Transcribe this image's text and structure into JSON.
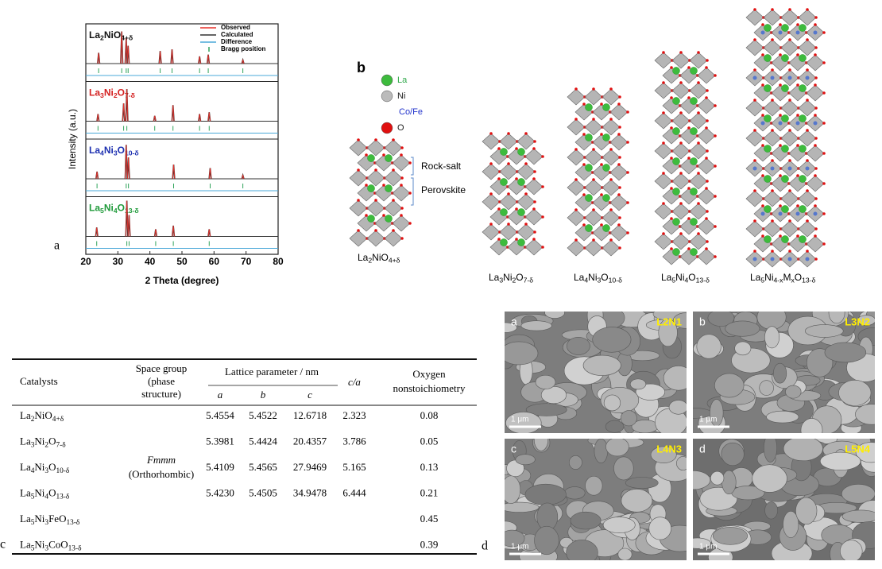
{
  "panel_a": {
    "label": "a",
    "y_axis_label": "Intensity (a.u.)",
    "x_axis_label": "2 Theta (degree)",
    "xlim": [
      20,
      80
    ],
    "xticks": [
      20,
      30,
      40,
      50,
      60,
      70,
      80
    ],
    "legend": [
      {
        "name": "Observed",
        "color": "#e8302a"
      },
      {
        "name": "Calculated",
        "color": "#333333"
      },
      {
        "name": "Difference",
        "color": "#4aa8d8"
      },
      {
        "name": "Bragg position",
        "color": "#2fa35a"
      }
    ],
    "samples": [
      {
        "formula": [
          "La",
          "2",
          "NiO",
          "4+δ"
        ],
        "color": "#111111",
        "peak_positions": [
          24,
          31.2,
          32.6,
          33.2,
          43.2,
          46.9,
          55.5,
          58.2,
          69
        ],
        "peak_heights": [
          0.3,
          0.9,
          0.7,
          0.5,
          0.35,
          0.4,
          0.2,
          0.25,
          0.1
        ]
      },
      {
        "formula": [
          "La",
          "3",
          "Ni",
          "2",
          "O",
          "7-δ"
        ],
        "color": "#d42020",
        "peak_positions": [
          23.8,
          31.8,
          32.8,
          41.5,
          47.2,
          55.5,
          58.5
        ],
        "peak_heights": [
          0.2,
          0.5,
          0.9,
          0.15,
          0.45,
          0.2,
          0.25
        ]
      },
      {
        "formula": [
          "La",
          "4",
          "Ni",
          "3",
          "O",
          "10-δ"
        ],
        "color": "#1c2fb0",
        "peak_positions": [
          23.5,
          32.6,
          33.3,
          47.4,
          58.8,
          69
        ],
        "peak_heights": [
          0.2,
          0.95,
          0.6,
          0.4,
          0.3,
          0.1
        ]
      },
      {
        "formula": [
          "La",
          "5",
          "Ni",
          "4",
          "O",
          "13-δ"
        ],
        "color": "#1f9a3a",
        "peak_positions": [
          23.4,
          32.8,
          33.5,
          41.8,
          47.3,
          58.5
        ],
        "peak_heights": [
          0.25,
          1.0,
          0.6,
          0.2,
          0.3,
          0.2
        ]
      }
    ]
  },
  "panel_b": {
    "label": "b",
    "legend": [
      {
        "name": "La",
        "ball_color": "#3dbb3d",
        "text_color": "#2fa84a"
      },
      {
        "name": "Ni",
        "ball_color": "#bbbbbb",
        "text_color": "#222222"
      },
      {
        "name": "Co/Fe",
        "text_color": "#2233cc"
      },
      {
        "name": "O",
        "ball_color": "#e01010",
        "text_color": "#222222"
      }
    ],
    "layer_labels": [
      "Rock-salt",
      "Perovskite"
    ],
    "structures": [
      [
        "La",
        "2",
        "NiO",
        "4+δ"
      ],
      [
        "La",
        "3",
        "Ni",
        "2",
        "O",
        "7-δ"
      ],
      [
        "La",
        "4",
        "Ni",
        "3",
        "O",
        "10-δ"
      ],
      [
        "La",
        "5",
        "Ni",
        "4",
        "O",
        "13-δ"
      ],
      [
        "La",
        "5",
        "Ni",
        "4-x",
        "M",
        "x",
        "O",
        "13-δ"
      ]
    ]
  },
  "panel_c": {
    "label": "c",
    "headers": {
      "catalysts": "Catalysts",
      "space_group": [
        "Space group",
        "(phase",
        "structure)"
      ],
      "lattice": "Lattice parameter / nm",
      "a": "a",
      "b": "b",
      "c": "c",
      "c_over_a": "c/a",
      "oxygen": [
        "Oxygen",
        "nonstoichiometry"
      ]
    },
    "space_group": {
      "symbol": "Fmmm",
      "structure": "(Orthorhombic)"
    },
    "rows": [
      {
        "catalyst": [
          "La",
          "2",
          "NiO",
          "4+δ"
        ],
        "a": "5.4554",
        "b": "5.4522",
        "c": "12.6718",
        "c_over_a": "2.323",
        "oxygen": "0.08"
      },
      {
        "catalyst": [
          "La",
          "3",
          "Ni",
          "2",
          "O",
          "7-δ"
        ],
        "a": "5.3981",
        "b": "5.4424",
        "c": "20.4357",
        "c_over_a": "3.786",
        "oxygen": "0.05"
      },
      {
        "catalyst": [
          "La",
          "4",
          "Ni",
          "3",
          "O",
          "10-δ"
        ],
        "a": "5.4109",
        "b": "5.4565",
        "c": "27.9469",
        "c_over_a": "5.165",
        "oxygen": "0.13"
      },
      {
        "catalyst": [
          "La",
          "5",
          "Ni",
          "4",
          "O",
          "13-δ"
        ],
        "a": "5.4230",
        "b": "5.4505",
        "c": "34.9478",
        "c_over_a": "6.444",
        "oxygen": "0.21"
      },
      {
        "catalyst": [
          "La",
          "5",
          "Ni",
          "3",
          "FeO",
          "13-δ"
        ],
        "oxygen": "0.45"
      },
      {
        "catalyst": [
          "La",
          "5",
          "Ni",
          "3",
          "CoO",
          "13-δ"
        ],
        "oxygen": "0.39"
      }
    ]
  },
  "panel_d": {
    "label": "d",
    "images": [
      {
        "letter": "a",
        "code": "L2N1",
        "scale": "1 μm"
      },
      {
        "letter": "b",
        "code": "L3N2",
        "scale": "1 μm"
      },
      {
        "letter": "c",
        "code": "L4N3",
        "scale": "1 μm"
      },
      {
        "letter": "d",
        "code": "L5N4",
        "scale": "1 μm"
      }
    ]
  }
}
